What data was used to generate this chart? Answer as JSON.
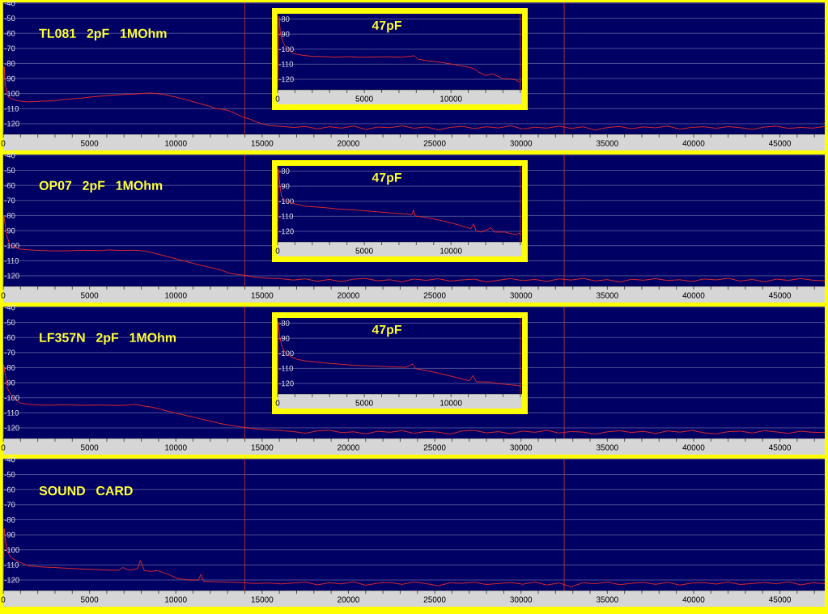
{
  "chart_data": [
    {
      "type": "line",
      "title": "TL081 2pF 1MOhm",
      "x": [
        0,
        50,
        130,
        280,
        500,
        750,
        1000,
        1400,
        1800,
        2200,
        2900,
        3600,
        4500,
        5300,
        6100,
        6900,
        7600,
        8100,
        8600,
        9200,
        10000,
        10750,
        11500,
        12000,
        12300,
        12800,
        13100,
        13500,
        13900,
        14300,
        14700,
        15100,
        15500,
        16200,
        16800,
        17500,
        18200,
        18900,
        19600,
        20300,
        21000,
        21700,
        22400,
        23100,
        23800,
        24500,
        25200,
        25900,
        26600,
        27300,
        28000,
        28700,
        29400,
        30100,
        30800,
        31500,
        32200,
        32900,
        33600,
        34300,
        35000,
        35700,
        36400,
        37100,
        37800,
        38500,
        39200,
        39900,
        40600,
        41300,
        42000,
        42700,
        43400,
        44100,
        44800,
        45500,
        46200,
        46900,
        47600
      ],
      "series": [
        {
          "color": "#e52a2a",
          "values": [
            -126,
            -82,
            -95,
            -102,
            -103.5,
            -104.5,
            -105,
            -105.5,
            -105.3,
            -105,
            -104.8,
            -103.8,
            -103,
            -102,
            -101.3,
            -100.6,
            -100.3,
            -99.8,
            -99.6,
            -100.4,
            -102.3,
            -104.5,
            -107,
            -108.5,
            -110,
            -110.5,
            -111.5,
            -113.5,
            -115.5,
            -117,
            -119,
            -120.3,
            -121.3,
            -121.8,
            -122.5,
            -121.8,
            -123.4,
            -122.0,
            -122.9,
            -121.5,
            -123.8,
            -122.2,
            -122.6,
            -121.4,
            -123.0,
            -122.1,
            -124.0,
            -122.4,
            -121.7,
            -123.2,
            -122.0,
            -122.8,
            -121.3,
            -123.5,
            -122.3,
            -122.9,
            -121.6,
            -123.1,
            -122.0,
            -124.2,
            -122.5,
            -121.8,
            -123.3,
            -122.1,
            -122.7,
            -121.5,
            -123.6,
            -122.4,
            -122.0,
            -123.0,
            -121.9,
            -122.6,
            -123.7,
            -122.2,
            -121.6,
            -123.1,
            -122.4,
            -122.9,
            -121.8
          ]
        }
      ],
      "xlim": [
        0,
        47600
      ],
      "ylim": [
        -127,
        -39.5
      ],
      "xticks": [
        0,
        {
          "value": 1000,
          "label": null
        },
        {
          "value": 2000,
          "label": null
        },
        {
          "value": 3000,
          "label": null
        },
        {
          "value": 4000,
          "label": null
        },
        5000,
        {
          "value": 6000,
          "label": null
        },
        {
          "value": 7000,
          "label": null
        },
        {
          "value": 8000,
          "label": null
        },
        {
          "value": 9000,
          "label": null
        },
        10000,
        {
          "value": 11000,
          "label": null
        },
        {
          "value": 12000,
          "label": null
        },
        {
          "value": 13000,
          "label": null
        },
        {
          "value": 14000,
          "label": null
        },
        15000,
        {
          "value": 16000,
          "label": null
        },
        {
          "value": 17000,
          "label": null
        },
        {
          "value": 18000,
          "label": null
        },
        {
          "value": 19000,
          "label": null
        },
        20000,
        {
          "value": 21000,
          "label": null
        },
        {
          "value": 22000,
          "label": null
        },
        {
          "value": 23000,
          "label": null
        },
        {
          "value": 24000,
          "label": null
        },
        25000,
        {
          "value": 26000,
          "label": null
        },
        {
          "value": 27000,
          "label": null
        },
        {
          "value": 28000,
          "label": null
        },
        {
          "value": 29000,
          "label": null
        },
        30000,
        {
          "value": 31000,
          "label": null
        },
        {
          "value": 32000,
          "label": null
        },
        {
          "value": 33000,
          "label": null
        },
        {
          "value": 34000,
          "label": null
        },
        35000,
        {
          "value": 36000,
          "label": null
        },
        {
          "value": 37000,
          "label": null
        },
        {
          "value": 38000,
          "label": null
        },
        {
          "value": 39000,
          "label": null
        },
        40000,
        {
          "value": 41000,
          "label": null
        },
        {
          "value": 42000,
          "label": null
        },
        {
          "value": 43000,
          "label": null
        },
        {
          "value": 44000,
          "label": null
        },
        45000,
        {
          "value": 46000,
          "label": null
        },
        {
          "value": 47000,
          "label": null
        }
      ],
      "yticks": [
        -120,
        -110,
        -100,
        -90,
        -80,
        -70,
        -60,
        -50,
        -40
      ],
      "grid": "y",
      "ref_lines": [
        {
          "axis": "x",
          "value": 14000,
          "color": "#c03030"
        },
        {
          "axis": "x",
          "value": 32500,
          "color": "#c03030"
        }
      ]
    },
    {
      "type": "line",
      "title": "47pF",
      "x": [
        0,
        80,
        160,
        310,
        470,
        700,
        940,
        1400,
        2000,
        2500,
        3300,
        4100,
        4800,
        5600,
        6400,
        7200,
        7900,
        8100,
        8700,
        9500,
        10300,
        11100,
        11420,
        11600,
        12010,
        12400,
        12950,
        13420,
        13730,
        13960,
        14050
      ],
      "series": [
        {
          "color": "#e52a2a",
          "values": [
            -126,
            -78.2,
            -89.8,
            -95.1,
            -98.7,
            -101.3,
            -103.1,
            -104,
            -104.8,
            -104.9,
            -105.3,
            -105,
            -105.4,
            -105.2,
            -105.1,
            -105.3,
            -104.4,
            -106.7,
            -107.8,
            -108.9,
            -110.5,
            -112.2,
            -113.5,
            -115.3,
            -117.5,
            -116.4,
            -119.4,
            -119.8,
            -120.4,
            -121.8,
            -120.7
          ]
        }
      ],
      "xlim": [
        0,
        14100
      ],
      "ylim": [
        -127,
        -76.5
      ],
      "xticks": [
        0,
        {
          "value": 1000,
          "label": null
        },
        {
          "value": 2000,
          "label": null
        },
        {
          "value": 3000,
          "label": null
        },
        {
          "value": 4000,
          "label": null
        },
        5000,
        {
          "value": 6000,
          "label": null
        },
        {
          "value": 7000,
          "label": null
        },
        {
          "value": 8000,
          "label": null
        },
        {
          "value": 9000,
          "label": null
        },
        10000,
        {
          "value": 11000,
          "label": null
        },
        {
          "value": 12000,
          "label": null
        },
        {
          "value": 13000,
          "label": null
        },
        {
          "value": 14000,
          "label": null
        }
      ],
      "yticks": [
        -120,
        -110,
        -100,
        -90,
        -80
      ],
      "grid": "y",
      "ref_lines": [
        {
          "axis": "x",
          "value": 14000,
          "color": "#c03030"
        }
      ]
    },
    {
      "type": "line",
      "title": "OP07 2pF 1MOhm",
      "x": [
        0,
        30,
        200,
        400,
        1000,
        1800,
        2700,
        3700,
        4700,
        5600,
        6100,
        6900,
        7600,
        8200,
        8600,
        9100,
        9600,
        10100,
        10600,
        11100,
        11500,
        12000,
        12300,
        12700,
        13100,
        13500,
        13900,
        14300,
        14700,
        15300,
        16000,
        16800,
        17500,
        18200,
        18900,
        19600,
        20300,
        21000,
        21700,
        22400,
        23100,
        23800,
        24500,
        25200,
        25900,
        26600,
        27300,
        28000,
        28700,
        29400,
        30100,
        30800,
        31500,
        32200,
        32900,
        33600,
        34300,
        35000,
        35700,
        36400,
        37100,
        37800,
        38500,
        39200,
        39900,
        40600,
        41300,
        42000,
        42700,
        43400,
        44100,
        44800,
        45500,
        46200,
        46900,
        47600
      ],
      "series": [
        {
          "color": "#e52a2a",
          "values": [
            -126,
            -80,
            -93,
            -100,
            -102.3,
            -103,
            -103.4,
            -103.4,
            -103,
            -103.3,
            -102.8,
            -103.2,
            -103,
            -103.5,
            -104.5,
            -106,
            -107.5,
            -109,
            -110.5,
            -112,
            -113.2,
            -114.5,
            -115.2,
            -116.5,
            -118.2,
            -119,
            -119.5,
            -120.3,
            -121,
            -121.6,
            -121.8,
            -122.8,
            -122.0,
            -123.6,
            -122.4,
            -123.9,
            -122.2,
            -121.8,
            -123.3,
            -122.6,
            -124.0,
            -122.1,
            -123.0,
            -121.9,
            -123.5,
            -122.7,
            -122.2,
            -124.1,
            -122.9,
            -121.8,
            -123.2,
            -122.4,
            -123.7,
            -122.0,
            -122.8,
            -121.7,
            -123.4,
            -122.5,
            -124.2,
            -122.3,
            -122.9,
            -121.9,
            -123.1,
            -122.6,
            -123.8,
            -122.1,
            -122.7,
            -121.6,
            -123.5,
            -122.4,
            -124.0,
            -122.2,
            -123.0,
            -121.8,
            -122.9,
            -123.3
          ]
        }
      ],
      "xlim": [
        0,
        47600
      ],
      "ylim": [
        -127,
        -39.5
      ],
      "xticks": [
        0,
        {
          "value": 1000,
          "label": null
        },
        {
          "value": 2000,
          "label": null
        },
        {
          "value": 3000,
          "label": null
        },
        {
          "value": 4000,
          "label": null
        },
        5000,
        {
          "value": 6000,
          "label": null
        },
        {
          "value": 7000,
          "label": null
        },
        {
          "value": 8000,
          "label": null
        },
        {
          "value": 9000,
          "label": null
        },
        10000,
        {
          "value": 11000,
          "label": null
        },
        {
          "value": 12000,
          "label": null
        },
        {
          "value": 13000,
          "label": null
        },
        {
          "value": 14000,
          "label": null
        },
        15000,
        {
          "value": 16000,
          "label": null
        },
        {
          "value": 17000,
          "label": null
        },
        {
          "value": 18000,
          "label": null
        },
        {
          "value": 19000,
          "label": null
        },
        20000,
        {
          "value": 21000,
          "label": null
        },
        {
          "value": 22000,
          "label": null
        },
        {
          "value": 23000,
          "label": null
        },
        {
          "value": 24000,
          "label": null
        },
        25000,
        {
          "value": 26000,
          "label": null
        },
        {
          "value": 27000,
          "label": null
        },
        {
          "value": 28000,
          "label": null
        },
        {
          "value": 29000,
          "label": null
        },
        30000,
        {
          "value": 31000,
          "label": null
        },
        {
          "value": 32000,
          "label": null
        },
        {
          "value": 33000,
          "label": null
        },
        {
          "value": 34000,
          "label": null
        },
        35000,
        {
          "value": 36000,
          "label": null
        },
        {
          "value": 37000,
          "label": null
        },
        {
          "value": 38000,
          "label": null
        },
        {
          "value": 39000,
          "label": null
        },
        40000,
        {
          "value": 41000,
          "label": null
        },
        {
          "value": 42000,
          "label": null
        },
        {
          "value": 43000,
          "label": null
        },
        {
          "value": 44000,
          "label": null
        },
        45000,
        {
          "value": 46000,
          "label": null
        },
        {
          "value": 47000,
          "label": null
        }
      ],
      "yticks": [
        -120,
        -110,
        -100,
        -90,
        -80,
        -70,
        -60,
        -50,
        -40
      ],
      "grid": "y",
      "ref_lines": [
        {
          "axis": "x",
          "value": 14000,
          "color": "#c03030"
        },
        {
          "axis": "x",
          "value": 32500,
          "color": "#c03030"
        }
      ]
    },
    {
      "type": "line",
      "title": "47pF",
      "x": [
        0,
        40,
        140,
        230,
        430,
        820,
        1210,
        1600,
        2570,
        3550,
        4520,
        5500,
        6470,
        7450,
        7740,
        7840,
        7930,
        8620,
        9400,
        10370,
        11150,
        11310,
        11440,
        11740,
        12320,
        12520,
        13100,
        13490,
        13780,
        13880,
        14050
      ],
      "series": [
        {
          "color": "#e52a2a",
          "values": [
            -126,
            -78.6,
            -90.5,
            -96.8,
            -99.5,
            -101.4,
            -102.3,
            -103.4,
            -104.1,
            -105.2,
            -105.9,
            -106.8,
            -107.7,
            -108.6,
            -109,
            -105.9,
            -109.8,
            -110.9,
            -112.7,
            -115.5,
            -118.2,
            -115,
            -119.5,
            -120.5,
            -117.7,
            -120.5,
            -120.5,
            -121.6,
            -122.3,
            -121.2,
            -121.8
          ]
        }
      ],
      "xlim": [
        0,
        14100
      ],
      "ylim": [
        -127,
        -76.5
      ],
      "xticks": [
        0,
        {
          "value": 1000,
          "label": null
        },
        {
          "value": 2000,
          "label": null
        },
        {
          "value": 3000,
          "label": null
        },
        {
          "value": 4000,
          "label": null
        },
        5000,
        {
          "value": 6000,
          "label": null
        },
        {
          "value": 7000,
          "label": null
        },
        {
          "value": 8000,
          "label": null
        },
        {
          "value": 9000,
          "label": null
        },
        10000,
        {
          "value": 11000,
          "label": null
        },
        {
          "value": 12000,
          "label": null
        },
        {
          "value": 13000,
          "label": null
        },
        {
          "value": 14000,
          "label": null
        }
      ],
      "yticks": [
        -120,
        -110,
        -100,
        -90,
        -80
      ],
      "grid": "y",
      "ref_lines": [
        {
          "axis": "x",
          "value": 14000,
          "color": "#c03030"
        }
      ]
    },
    {
      "type": "line",
      "title": "LF357N 2pF 1MOhm",
      "x": [
        0,
        20,
        250,
        600,
        1000,
        1800,
        2700,
        3700,
        4600,
        5600,
        6500,
        7200,
        7600,
        8200,
        8600,
        9100,
        9600,
        10100,
        10600,
        11100,
        11500,
        12000,
        12500,
        12900,
        13400,
        13900,
        14400,
        14700,
        15400,
        16100,
        16800,
        17500,
        18200,
        18900,
        19600,
        20300,
        21000,
        21700,
        22400,
        23100,
        23800,
        24500,
        25200,
        25900,
        26600,
        27300,
        28000,
        28700,
        29400,
        30100,
        30800,
        31500,
        32200,
        32900,
        33600,
        34300,
        35000,
        35700,
        36400,
        37100,
        37800,
        38500,
        39200,
        39900,
        40600,
        41300,
        42000,
        42700,
        43400,
        44100,
        44800,
        45500,
        46200,
        46900,
        47600
      ],
      "series": [
        {
          "color": "#e52a2a",
          "values": [
            -126,
            -78,
            -94,
            -100.7,
            -103.6,
            -104.7,
            -104.9,
            -104.6,
            -105,
            -104.8,
            -105.1,
            -104.9,
            -104.3,
            -105.6,
            -106.2,
            -107.6,
            -109.1,
            -110.4,
            -111.8,
            -113,
            -114.2,
            -115.5,
            -116.9,
            -117.8,
            -118.7,
            -119.6,
            -120.3,
            -120.7,
            -121.3,
            -121.8,
            -122.4,
            -123.5,
            -122.0,
            -121.6,
            -123.1,
            -122.6,
            -124.0,
            -122.2,
            -122.9,
            -121.8,
            -123.6,
            -122.3,
            -122.8,
            -124.1,
            -122.0,
            -121.7,
            -123.3,
            -122.5,
            -123.8,
            -122.1,
            -122.9,
            -121.6,
            -123.4,
            -122.4,
            -122.8,
            -124.2,
            -122.6,
            -121.9,
            -123.0,
            -122.3,
            -123.7,
            -122.0,
            -122.8,
            -121.7,
            -123.2,
            -124.0,
            -122.5,
            -122.1,
            -123.4,
            -121.8,
            -122.7,
            -123.6,
            -122.2,
            -122.9,
            -123.1
          ]
        }
      ],
      "xlim": [
        0,
        47600
      ],
      "ylim": [
        -127,
        -39.5
      ],
      "xticks": [
        0,
        {
          "value": 1000,
          "label": null
        },
        {
          "value": 2000,
          "label": null
        },
        {
          "value": 3000,
          "label": null
        },
        {
          "value": 4000,
          "label": null
        },
        5000,
        {
          "value": 6000,
          "label": null
        },
        {
          "value": 7000,
          "label": null
        },
        {
          "value": 8000,
          "label": null
        },
        {
          "value": 9000,
          "label": null
        },
        10000,
        {
          "value": 11000,
          "label": null
        },
        {
          "value": 12000,
          "label": null
        },
        {
          "value": 13000,
          "label": null
        },
        {
          "value": 14000,
          "label": null
        },
        15000,
        {
          "value": 16000,
          "label": null
        },
        {
          "value": 17000,
          "label": null
        },
        {
          "value": 18000,
          "label": null
        },
        {
          "value": 19000,
          "label": null
        },
        20000,
        {
          "value": 21000,
          "label": null
        },
        {
          "value": 22000,
          "label": null
        },
        {
          "value": 23000,
          "label": null
        },
        {
          "value": 24000,
          "label": null
        },
        25000,
        {
          "value": 26000,
          "label": null
        },
        {
          "value": 27000,
          "label": null
        },
        {
          "value": 28000,
          "label": null
        },
        {
          "value": 29000,
          "label": null
        },
        30000,
        {
          "value": 31000,
          "label": null
        },
        {
          "value": 32000,
          "label": null
        },
        {
          "value": 33000,
          "label": null
        },
        {
          "value": 34000,
          "label": null
        },
        35000,
        {
          "value": 36000,
          "label": null
        },
        {
          "value": 37000,
          "label": null
        },
        {
          "value": 38000,
          "label": null
        },
        {
          "value": 39000,
          "label": null
        },
        40000,
        {
          "value": 41000,
          "label": null
        },
        {
          "value": 42000,
          "label": null
        },
        {
          "value": 43000,
          "label": null
        },
        {
          "value": 44000,
          "label": null
        },
        45000,
        {
          "value": 46000,
          "label": null
        },
        {
          "value": 47000,
          "label": null
        }
      ],
      "yticks": [
        -120,
        -110,
        -100,
        -90,
        -80,
        -70,
        -60,
        -50,
        -40
      ],
      "grid": "y",
      "ref_lines": [
        {
          "axis": "x",
          "value": 14000,
          "color": "#c03030"
        },
        {
          "axis": "x",
          "value": 32500,
          "color": "#c03030"
        }
      ]
    },
    {
      "type": "line",
      "title": "47pF",
      "x": [
        0,
        20,
        120,
        250,
        450,
        740,
        1130,
        1520,
        2500,
        3470,
        4440,
        5420,
        6390,
        7370,
        7800,
        7950,
        8730,
        9320,
        10290,
        11070,
        11270,
        11460,
        12240,
        12630,
        13220,
        13800,
        14050
      ],
      "series": [
        {
          "color": "#e52a2a",
          "values": [
            -126,
            -78.9,
            -88.9,
            -95.6,
            -99.6,
            -102.2,
            -104,
            -104.9,
            -106.2,
            -107.1,
            -108,
            -108.4,
            -108.9,
            -109.3,
            -107.1,
            -110.2,
            -111.8,
            -113.3,
            -116,
            -118.2,
            -114.7,
            -118.9,
            -119.1,
            -120,
            -120.7,
            -121.3,
            -121.8
          ]
        }
      ],
      "xlim": [
        0,
        14100
      ],
      "ylim": [
        -127,
        -76.5
      ],
      "xticks": [
        0,
        {
          "value": 1000,
          "label": null
        },
        {
          "value": 2000,
          "label": null
        },
        {
          "value": 3000,
          "label": null
        },
        {
          "value": 4000,
          "label": null
        },
        5000,
        {
          "value": 6000,
          "label": null
        },
        {
          "value": 7000,
          "label": null
        },
        {
          "value": 8000,
          "label": null
        },
        {
          "value": 9000,
          "label": null
        },
        10000,
        {
          "value": 11000,
          "label": null
        },
        {
          "value": 12000,
          "label": null
        },
        {
          "value": 13000,
          "label": null
        },
        {
          "value": 14000,
          "label": null
        }
      ],
      "yticks": [
        -120,
        -110,
        -100,
        -90,
        -80
      ],
      "grid": "y",
      "ref_lines": [
        {
          "axis": "x",
          "value": 14000,
          "color": "#c03030"
        }
      ]
    },
    {
      "type": "line",
      "title": "SOUND CARD",
      "x": [
        0,
        50,
        200,
        440,
        750,
        1060,
        1380,
        2160,
        2940,
        3700,
        4500,
        5300,
        6100,
        6700,
        6920,
        7300,
        7780,
        7940,
        8180,
        8600,
        8960,
        9500,
        10130,
        10750,
        11300,
        11460,
        11610,
        12300,
        13100,
        13900,
        14600,
        15400,
        16100,
        16800,
        17500,
        18200,
        18900,
        19600,
        20300,
        21000,
        21700,
        22400,
        23100,
        23800,
        24500,
        25200,
        25900,
        26600,
        27300,
        28000,
        28700,
        29400,
        30100,
        30800,
        31500,
        32200,
        32900,
        33600,
        34300,
        35000,
        35700,
        36400,
        37100,
        37800,
        38500,
        39200,
        39900,
        40600,
        41300,
        42000,
        42700,
        43400,
        44100,
        44800,
        45500,
        46200,
        46900,
        47600
      ],
      "series": [
        {
          "color": "#e52a2a",
          "values": [
            -126,
            -86,
            -100,
            -105.2,
            -107,
            -108.7,
            -110.4,
            -111.3,
            -111.7,
            -112.2,
            -112.7,
            -113,
            -113.4,
            -113.6,
            -111.7,
            -113.5,
            -112.5,
            -107,
            -113.9,
            -114.2,
            -113.8,
            -116,
            -119.1,
            -120,
            -120,
            -116.2,
            -120.9,
            -121.2,
            -121.4,
            -121.8,
            -122.3,
            -122,
            -122.6,
            -122.0,
            -121.4,
            -123.2,
            -121.8,
            -122.6,
            -121.2,
            -123.5,
            -122.1,
            -121.6,
            -122.9,
            -121.3,
            -122.4,
            -123.8,
            -121.9,
            -122.2,
            -121.5,
            -123.0,
            -122.3,
            -121.7,
            -122.8,
            -121.4,
            -123.3,
            -122.0,
            -124.5,
            -121.8,
            -122.5,
            -121.3,
            -123.1,
            -122.2,
            -121.6,
            -122.9,
            -121.5,
            -123.4,
            -122.0,
            -121.8,
            -122.7,
            -121.4,
            -123.0,
            -122.3,
            -121.7,
            -122.5,
            -121.2,
            -123.2,
            -121.9,
            -122.4
          ]
        }
      ],
      "xlim": [
        0,
        47600
      ],
      "ylim": [
        -127,
        -39.5
      ],
      "xticks": [
        0,
        {
          "value": 1000,
          "label": null
        },
        {
          "value": 2000,
          "label": null
        },
        {
          "value": 3000,
          "label": null
        },
        {
          "value": 4000,
          "label": null
        },
        5000,
        {
          "value": 6000,
          "label": null
        },
        {
          "value": 7000,
          "label": null
        },
        {
          "value": 8000,
          "label": null
        },
        {
          "value": 9000,
          "label": null
        },
        10000,
        {
          "value": 11000,
          "label": null
        },
        {
          "value": 12000,
          "label": null
        },
        {
          "value": 13000,
          "label": null
        },
        {
          "value": 14000,
          "label": null
        },
        15000,
        {
          "value": 16000,
          "label": null
        },
        {
          "value": 17000,
          "label": null
        },
        {
          "value": 18000,
          "label": null
        },
        {
          "value": 19000,
          "label": null
        },
        20000,
        {
          "value": 21000,
          "label": null
        },
        {
          "value": 22000,
          "label": null
        },
        {
          "value": 23000,
          "label": null
        },
        {
          "value": 24000,
          "label": null
        },
        25000,
        {
          "value": 26000,
          "label": null
        },
        {
          "value": 27000,
          "label": null
        },
        {
          "value": 28000,
          "label": null
        },
        {
          "value": 29000,
          "label": null
        },
        30000,
        {
          "value": 31000,
          "label": null
        },
        {
          "value": 32000,
          "label": null
        },
        {
          "value": 33000,
          "label": null
        },
        {
          "value": 34000,
          "label": null
        },
        35000,
        {
          "value": 36000,
          "label": null
        },
        {
          "value": 37000,
          "label": null
        },
        {
          "value": 38000,
          "label": null
        },
        {
          "value": 39000,
          "label": null
        },
        40000,
        {
          "value": 41000,
          "label": null
        },
        {
          "value": 42000,
          "label": null
        },
        {
          "value": 43000,
          "label": null
        },
        {
          "value": 44000,
          "label": null
        },
        45000,
        {
          "value": 46000,
          "label": null
        },
        {
          "value": 47000,
          "label": null
        }
      ],
      "yticks": [
        -120,
        -110,
        -100,
        -90,
        -80,
        -70,
        -60,
        -50,
        -40
      ],
      "grid": "y",
      "ref_lines": [
        {
          "axis": "x",
          "value": 14000,
          "color": "#c03030"
        },
        {
          "axis": "x",
          "value": 32500,
          "color": "#c03030"
        }
      ]
    }
  ]
}
